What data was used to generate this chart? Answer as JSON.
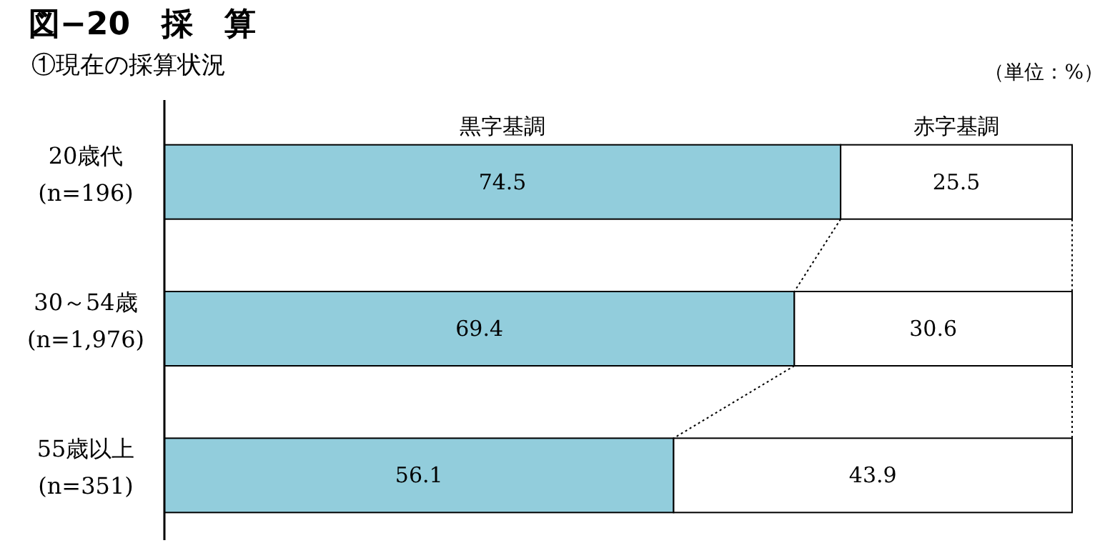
{
  "chart_data": {
    "type": "bar",
    "orientation": "horizontal",
    "stacked": true,
    "title": "図−20　採　算",
    "subtitle": "①現在の採算状況",
    "annotations": [
      "（単位：%）"
    ],
    "categories": [
      "20歳代\n(n=196)",
      "30～54歳\n(n=1,976)",
      "55歳以上\n(n=351)"
    ],
    "xlim": [
      0,
      100
    ],
    "data_labels": true,
    "legend": "top",
    "series": [
      {
        "name": "黒字基調",
        "color": "#92cddc",
        "values": [
          74.5,
          69.4,
          56.1
        ]
      },
      {
        "name": "赤字基調",
        "color": "#ffffff",
        "values": [
          25.5,
          30.6,
          43.9
        ]
      }
    ]
  }
}
